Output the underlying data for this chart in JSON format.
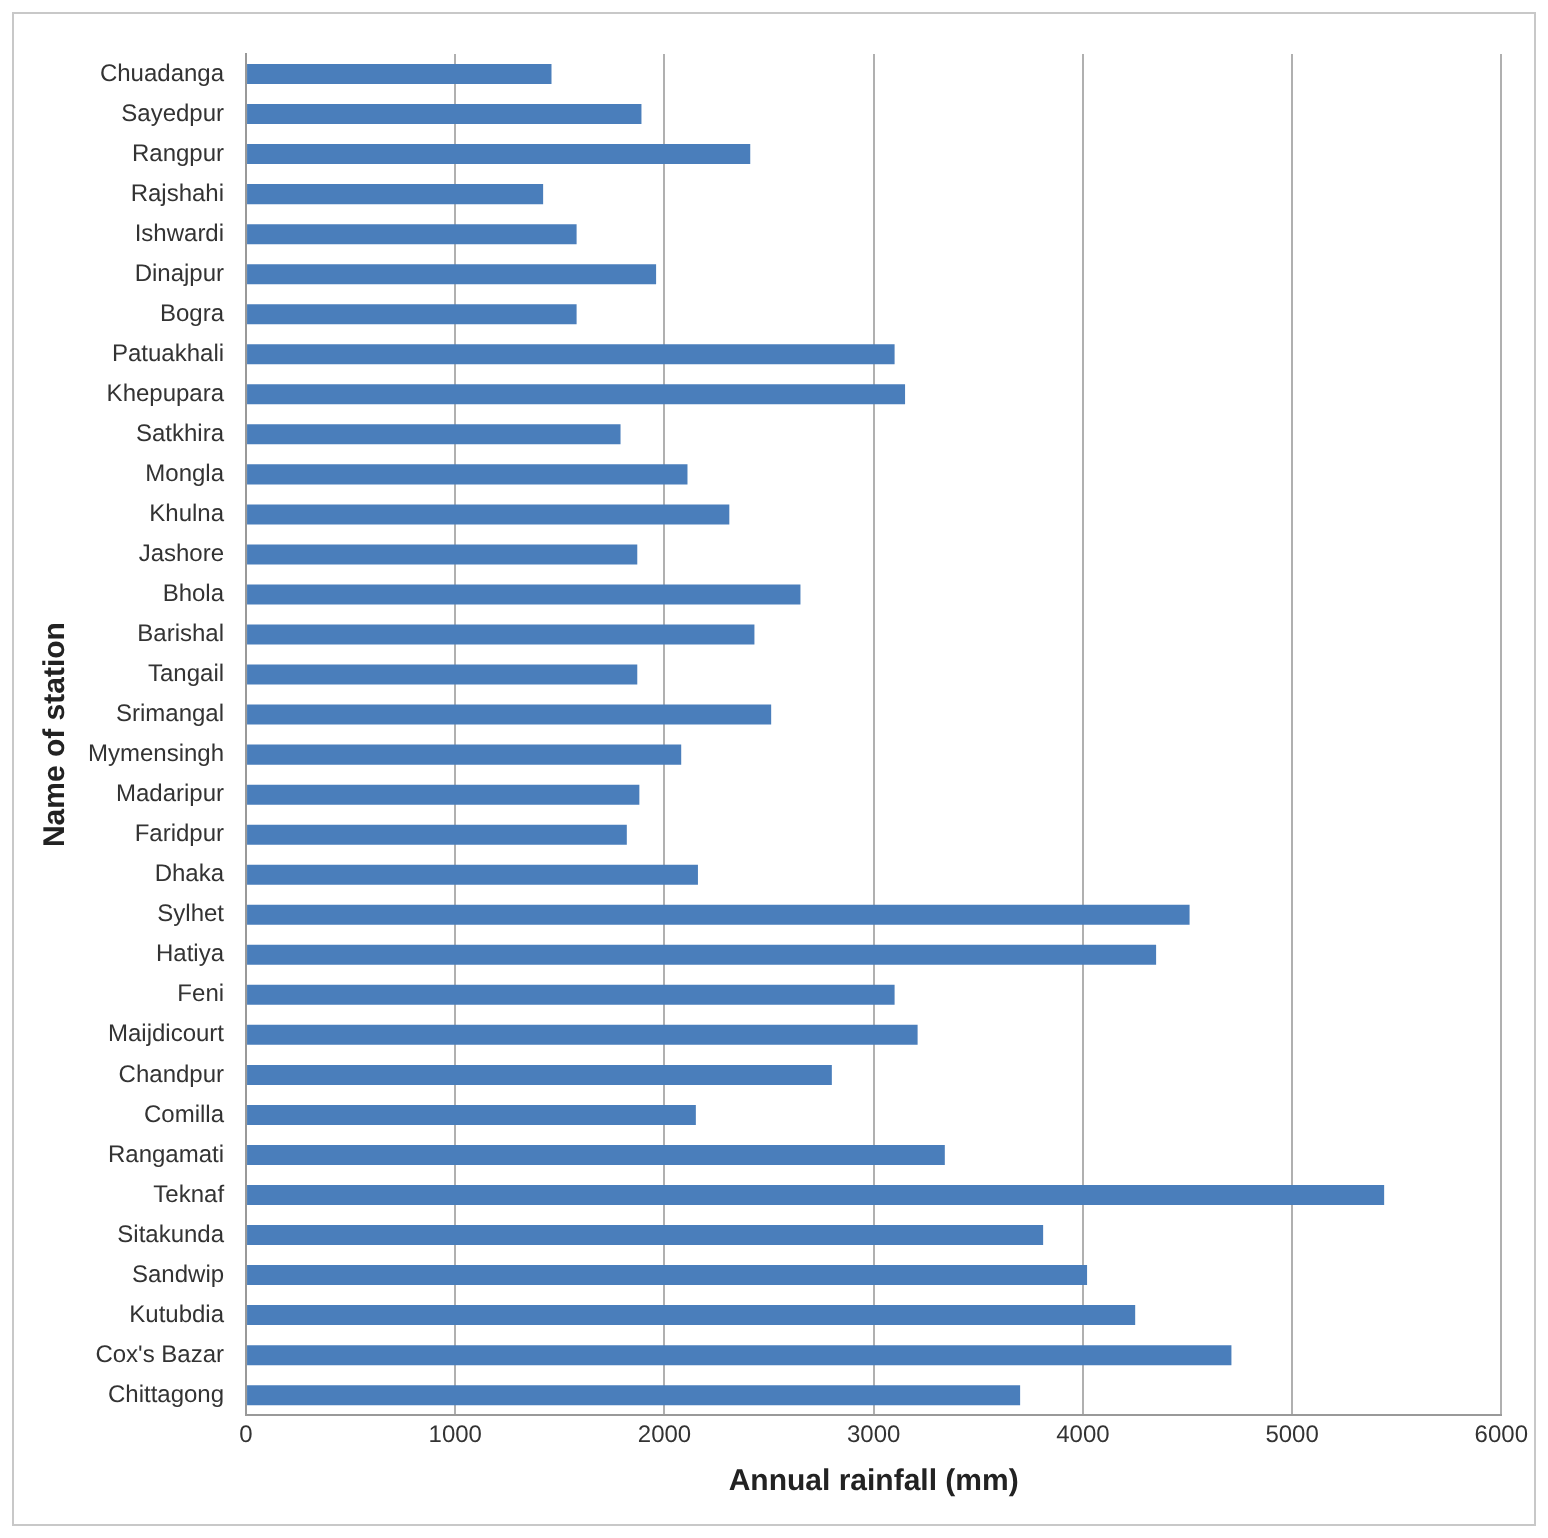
{
  "chart_data": {
    "type": "bar",
    "orientation": "horizontal",
    "xlabel": "Annual rainfall (mm)",
    "ylabel": "Name of station",
    "categories": [
      "Chuadanga",
      "Sayedpur",
      "Rangpur",
      "Rajshahi",
      "Ishwardi",
      "Dinajpur",
      "Bogra",
      "Patuakhali",
      "Khepupara",
      "Satkhira",
      "Mongla",
      "Khulna",
      "Jashore",
      "Bhola",
      "Barishal",
      "Tangail",
      "Srimangal",
      "Mymensingh",
      "Madaripur",
      "Faridpur",
      "Dhaka",
      "Sylhet",
      "Hatiya",
      "Feni",
      "Maijdicourt",
      "Chandpur",
      "Comilla",
      "Rangamati",
      "Teknaf",
      "Sitakunda",
      "Sandwip",
      "Kutubdia",
      "Cox's Bazar",
      "Chittagong"
    ],
    "values": [
      1460,
      1890,
      2410,
      1420,
      1580,
      1960,
      1580,
      3100,
      3150,
      1790,
      2110,
      2310,
      1870,
      2650,
      2430,
      1870,
      2510,
      2080,
      1880,
      1820,
      2160,
      4510,
      4350,
      3100,
      3210,
      2800,
      2150,
      3340,
      5440,
      3810,
      4020,
      4250,
      4710,
      3700
    ],
    "color": "#4a7ebb",
    "xlim": [
      0,
      6000
    ],
    "xticks": [
      0,
      1000,
      2000,
      3000,
      4000,
      5000,
      6000
    ],
    "grid": "x",
    "legend": false
  }
}
